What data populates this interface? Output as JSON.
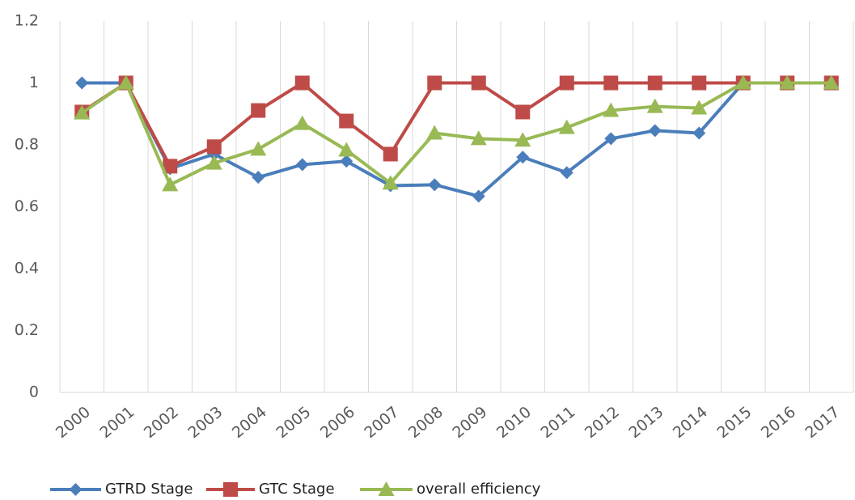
{
  "chart_data": {
    "type": "line",
    "categories": [
      "2000",
      "2001",
      "2002",
      "2003",
      "2004",
      "2005",
      "2006",
      "2007",
      "2008",
      "2009",
      "2010",
      "2011",
      "2012",
      "2013",
      "2014",
      "2015",
      "2016",
      "2017"
    ],
    "series": [
      {
        "name": "GTRD Stage",
        "color": "#4a7ebb",
        "marker": "diamond",
        "values": [
          1.0,
          1.0,
          0.723,
          0.77,
          0.695,
          0.736,
          0.747,
          0.668,
          0.671,
          0.634,
          0.76,
          0.71,
          0.82,
          0.846,
          0.838,
          1.0,
          1.0,
          1.0
        ]
      },
      {
        "name": "GTC Stage",
        "color": "#be4b48",
        "marker": "square",
        "values": [
          0.906,
          1.0,
          0.731,
          0.794,
          0.911,
          1.0,
          0.877,
          0.77,
          1.0,
          1.0,
          0.906,
          1.0,
          1.0,
          1.0,
          1.0,
          1.0,
          1.0,
          1.0
        ]
      },
      {
        "name": "overall efficiency",
        "color": "#98b954",
        "marker": "triangle",
        "values": [
          0.903,
          1.0,
          0.671,
          0.741,
          0.786,
          0.869,
          0.783,
          0.676,
          0.838,
          0.82,
          0.815,
          0.856,
          0.911,
          0.924,
          0.919,
          1.0,
          1.0,
          1.0
        ]
      }
    ],
    "ylim": [
      0,
      1.2
    ],
    "yticks": [
      0,
      0.2,
      0.4,
      0.6,
      0.8,
      1,
      1.2
    ],
    "grid": "vertical",
    "legend": "bottom-left"
  }
}
